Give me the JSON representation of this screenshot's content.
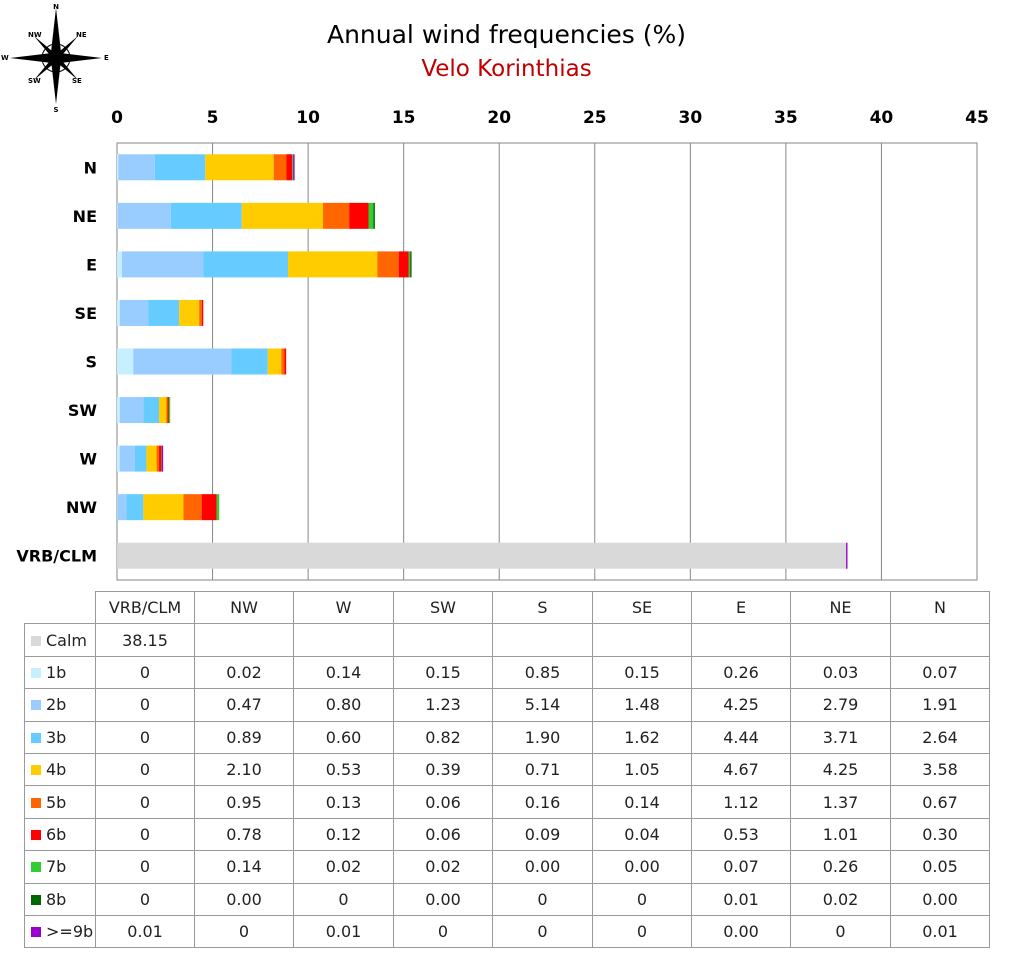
{
  "title": "Annual wind frequencies (%)",
  "subtitle": "Velo Korinthias",
  "compass": {
    "labels": [
      "N",
      "NE",
      "E",
      "SE",
      "S",
      "SW",
      "W",
      "NW"
    ]
  },
  "chart_data": {
    "type": "bar",
    "orientation": "horizontal",
    "stacked": true,
    "categories": [
      "N",
      "NE",
      "E",
      "SE",
      "S",
      "SW",
      "W",
      "NW",
      "VRB/CLM"
    ],
    "xlim": [
      0,
      45
    ],
    "xticks": [
      0,
      5,
      10,
      15,
      20,
      25,
      30,
      35,
      40,
      45
    ],
    "grid": true,
    "series": [
      {
        "name": "Calm",
        "color": "#d9d9d9",
        "values": [
          0,
          0,
          0,
          0,
          0,
          0,
          0,
          0,
          38.15
        ]
      },
      {
        "name": "1b",
        "color": "#c6efff",
        "values": [
          0.07,
          0.03,
          0.26,
          0.15,
          0.85,
          0.15,
          0.14,
          0.02,
          0
        ]
      },
      {
        "name": "2b",
        "color": "#99ccff",
        "values": [
          1.91,
          2.79,
          4.25,
          1.48,
          5.14,
          1.23,
          0.8,
          0.47,
          0
        ]
      },
      {
        "name": "3b",
        "color": "#66ccff",
        "values": [
          2.64,
          3.71,
          4.44,
          1.62,
          1.9,
          0.82,
          0.6,
          0.89,
          0
        ]
      },
      {
        "name": "4b",
        "color": "#ffcc00",
        "values": [
          3.58,
          4.25,
          4.67,
          1.05,
          0.71,
          0.39,
          0.53,
          2.1,
          0
        ]
      },
      {
        "name": "5b",
        "color": "#ff6600",
        "values": [
          0.67,
          1.37,
          1.12,
          0.14,
          0.16,
          0.06,
          0.13,
          0.95,
          0
        ]
      },
      {
        "name": "6b",
        "color": "#ff0000",
        "values": [
          0.3,
          1.01,
          0.53,
          0.04,
          0.09,
          0.06,
          0.12,
          0.78,
          0
        ]
      },
      {
        "name": "7b",
        "color": "#33cc33",
        "values": [
          0.05,
          0.26,
          0.07,
          0.0,
          0.0,
          0.02,
          0.02,
          0.14,
          0
        ]
      },
      {
        "name": "8b",
        "color": "#006600",
        "values": [
          0.0,
          0.02,
          0.01,
          0,
          0,
          0.0,
          0,
          0.0,
          0
        ]
      },
      {
        "name": ">=9b",
        "color": "#9900cc",
        "values": [
          0.01,
          0,
          0.0,
          0,
          0,
          0,
          0.01,
          0,
          0.01
        ]
      }
    ]
  },
  "table": {
    "columns": [
      "VRB/CLM",
      "NW",
      "W",
      "SW",
      "S",
      "SE",
      "E",
      "NE",
      "N"
    ],
    "rows": [
      {
        "label": "Calm",
        "color": "#d9d9d9",
        "cells": [
          "38.15",
          "",
          "",
          "",
          "",
          "",
          "",
          "",
          ""
        ]
      },
      {
        "label": "1b",
        "color": "#c6efff",
        "cells": [
          "0",
          "0.02",
          "0.14",
          "0.15",
          "0.85",
          "0.15",
          "0.26",
          "0.03",
          "0.07"
        ]
      },
      {
        "label": "2b",
        "color": "#99ccff",
        "cells": [
          "0",
          "0.47",
          "0.80",
          "1.23",
          "5.14",
          "1.48",
          "4.25",
          "2.79",
          "1.91"
        ]
      },
      {
        "label": "3b",
        "color": "#66ccff",
        "cells": [
          "0",
          "0.89",
          "0.60",
          "0.82",
          "1.90",
          "1.62",
          "4.44",
          "3.71",
          "2.64"
        ]
      },
      {
        "label": "4b",
        "color": "#ffcc00",
        "cells": [
          "0",
          "2.10",
          "0.53",
          "0.39",
          "0.71",
          "1.05",
          "4.67",
          "4.25",
          "3.58"
        ]
      },
      {
        "label": "5b",
        "color": "#ff6600",
        "cells": [
          "0",
          "0.95",
          "0.13",
          "0.06",
          "0.16",
          "0.14",
          "1.12",
          "1.37",
          "0.67"
        ]
      },
      {
        "label": "6b",
        "color": "#ff0000",
        "cells": [
          "0",
          "0.78",
          "0.12",
          "0.06",
          "0.09",
          "0.04",
          "0.53",
          "1.01",
          "0.30"
        ]
      },
      {
        "label": "7b",
        "color": "#33cc33",
        "cells": [
          "0",
          "0.14",
          "0.02",
          "0.02",
          "0.00",
          "0.00",
          "0.07",
          "0.26",
          "0.05"
        ]
      },
      {
        "label": "8b",
        "color": "#006600",
        "cells": [
          "0",
          "0.00",
          "0",
          "0.00",
          "0",
          "0",
          "0.01",
          "0.02",
          "0.00"
        ]
      },
      {
        "label": ">=9b",
        "color": "#9900cc",
        "cells": [
          "0.01",
          "0",
          "0.01",
          "0",
          "0",
          "0",
          "0.00",
          "0",
          "0.01"
        ]
      }
    ]
  }
}
